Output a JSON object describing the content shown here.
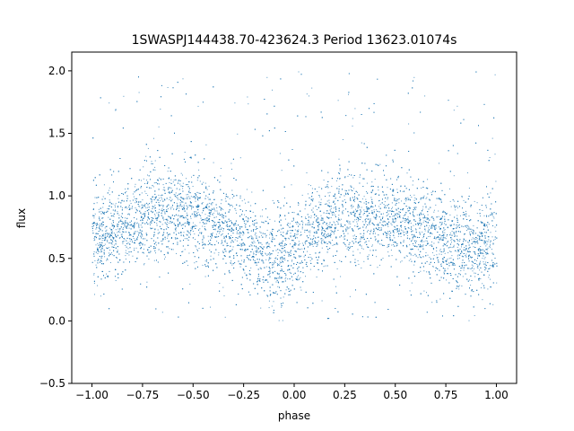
{
  "chart_data": {
    "type": "scatter",
    "title": "1SWASPJ144438.70-423624.3 Period 13623.01074s",
    "xlabel": "phase",
    "ylabel": "flux",
    "xlim": [
      -1.1,
      1.1
    ],
    "ylim": [
      -0.5,
      2.15
    ],
    "x_ticks": [
      -1.0,
      -0.75,
      -0.5,
      -0.25,
      0.0,
      0.25,
      0.5,
      0.75,
      1.0
    ],
    "x_tick_labels": [
      "−1.00",
      "−0.75",
      "−0.50",
      "−0.25",
      "0.00",
      "0.25",
      "0.50",
      "0.75",
      "1.00"
    ],
    "y_ticks": [
      -0.5,
      0.0,
      0.5,
      1.0,
      1.5,
      2.0
    ],
    "y_tick_labels": [
      "−0.5",
      "0.0",
      "0.5",
      "1.0",
      "1.5",
      "2.0"
    ],
    "grid": false,
    "legend": "none",
    "series": [
      {
        "marker_color": "#1f77b4",
        "x_range": [
          -1.0,
          1.0
        ],
        "periodic_trend": {
          "phase": [
            -1.0,
            -0.9,
            -0.8,
            -0.7,
            -0.6,
            -0.5,
            -0.4,
            -0.3,
            -0.2,
            -0.1,
            0.0,
            0.1,
            0.2,
            0.3,
            0.4,
            0.5,
            0.6,
            0.7,
            0.8,
            0.9,
            1.0
          ],
          "flux": [
            0.62,
            0.72,
            0.8,
            0.86,
            0.87,
            0.84,
            0.78,
            0.7,
            0.6,
            0.5,
            0.58,
            0.72,
            0.82,
            0.86,
            0.85,
            0.8,
            0.74,
            0.68,
            0.6,
            0.55,
            0.62
          ]
        },
        "scatter_sigma": 0.18,
        "outlier_flux_range": [
          0.0,
          2.0
        ]
      }
    ]
  }
}
